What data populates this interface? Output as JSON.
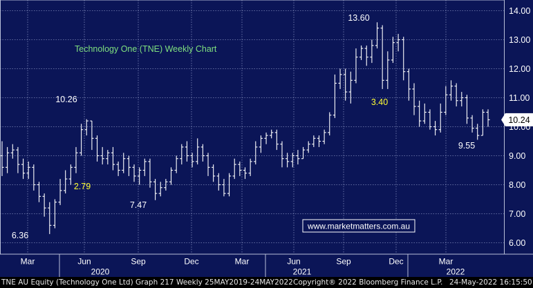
{
  "colors": {
    "background": "#0b1557",
    "plot_border": "#b9c0d9",
    "grid": "#7d86b8",
    "bar": "#ffffff",
    "title": "#7fe07f",
    "yellow_label": "#ffff33",
    "white_label": "#ffffff",
    "axis_text": "#ffffff",
    "current_box_bg": "#ffffff",
    "current_box_text": "#000000",
    "watermark_bg": "#0b1557",
    "watermark_border": "#ffffff"
  },
  "chart_data": {
    "type": "ohlc",
    "title": "Technology One (TNE) Weekly Chart",
    "ylim": [
      5.75,
      14.2
    ],
    "yticks": [
      "6.00",
      "7.00",
      "8.00",
      "9.00",
      "10.00",
      "11.00",
      "12.00",
      "13.00",
      "14.00"
    ],
    "ytick_values": [
      6,
      7,
      8,
      9,
      10,
      11,
      12,
      13,
      14
    ],
    "months": [
      {
        "label": "Mar",
        "index": 40
      },
      {
        "label": "Jun",
        "index": 122
      },
      {
        "label": "Sep",
        "index": 200
      },
      {
        "label": "Dec",
        "index": 277
      },
      {
        "label": "Mar",
        "index": 350
      },
      {
        "label": "Jun",
        "index": 425
      },
      {
        "label": "Sep",
        "index": 497
      },
      {
        "label": "Dec",
        "index": 573
      },
      {
        "label": "Mar",
        "index": 645
      }
    ],
    "years": [
      {
        "label": "2020",
        "index": 145
      },
      {
        "label": "2021",
        "index": 437
      },
      {
        "label": "2022",
        "index": 659
      }
    ],
    "year_dividers": [
      86,
      384,
      590
    ],
    "current_value": "10.24",
    "current_price": 10.24,
    "annotations": [
      {
        "text": "10.26",
        "kind": "white",
        "x_index": 96,
        "y_value": 10.85
      },
      {
        "text": "2.79",
        "kind": "yellow",
        "x_index": 119,
        "y_value": 7.85
      },
      {
        "text": "7.47",
        "kind": "white",
        "x_index": 200,
        "y_value": 7.2
      },
      {
        "text": "6.36",
        "kind": "white",
        "x_index": 29,
        "y_value": 6.15
      },
      {
        "text": "13.60",
        "kind": "white",
        "x_index": 519,
        "y_value": 13.65
      },
      {
        "text": "3.40",
        "kind": "yellow",
        "x_index": 549,
        "y_value": 10.75
      },
      {
        "text": "9.55",
        "kind": "white",
        "x_index": 675,
        "y_value": 9.25
      }
    ],
    "watermark": "www.marketmatters.com.au",
    "bars": [
      [
        9.0,
        8.6,
        9.5,
        8.3
      ],
      [
        8.6,
        9.1,
        9.3,
        8.4
      ],
      [
        9.1,
        9.2,
        9.4,
        8.9
      ],
      [
        9.2,
        8.7,
        9.3,
        8.4
      ],
      [
        8.7,
        8.4,
        8.9,
        8.2
      ],
      [
        8.4,
        8.6,
        8.8,
        8.2
      ],
      [
        8.6,
        8.0,
        8.7,
        7.8
      ],
      [
        8.0,
        7.6,
        8.1,
        7.4
      ],
      [
        7.6,
        7.2,
        7.7,
        6.9
      ],
      [
        7.2,
        6.6,
        7.4,
        6.3
      ],
      [
        6.6,
        7.4,
        7.5,
        6.5
      ],
      [
        7.4,
        7.8,
        8.2,
        7.3
      ],
      [
        7.8,
        8.2,
        8.5,
        7.7
      ],
      [
        8.2,
        8.6,
        8.7,
        8.0
      ],
      [
        8.6,
        9.1,
        9.3,
        8.4
      ],
      [
        9.1,
        9.9,
        10.1,
        9.0
      ],
      [
        9.9,
        10.2,
        10.26,
        9.7
      ],
      [
        10.2,
        9.6,
        10.2,
        9.2
      ],
      [
        9.6,
        9.0,
        9.7,
        8.8
      ],
      [
        9.0,
        8.9,
        9.3,
        8.7
      ],
      [
        8.9,
        9.1,
        9.2,
        8.7
      ],
      [
        9.1,
        8.7,
        9.3,
        8.5
      ],
      [
        8.7,
        8.5,
        8.8,
        8.3
      ],
      [
        8.5,
        8.9,
        9.1,
        8.4
      ],
      [
        8.9,
        8.6,
        9.0,
        8.3
      ],
      [
        8.6,
        8.3,
        8.7,
        8.1
      ],
      [
        8.3,
        8.5,
        8.6,
        8.0
      ],
      [
        8.5,
        8.8,
        8.9,
        8.3
      ],
      [
        8.8,
        8.1,
        8.9,
        7.9
      ],
      [
        8.1,
        7.7,
        8.2,
        7.47
      ],
      [
        7.7,
        7.9,
        8.1,
        7.6
      ],
      [
        7.9,
        8.1,
        8.2,
        7.8
      ],
      [
        8.1,
        8.5,
        8.6,
        8.0
      ],
      [
        8.5,
        8.9,
        9.0,
        8.4
      ],
      [
        8.9,
        9.3,
        9.4,
        8.7
      ],
      [
        9.3,
        9.0,
        9.5,
        8.8
      ],
      [
        9.0,
        8.8,
        9.1,
        8.6
      ],
      [
        8.8,
        9.3,
        9.6,
        8.7
      ],
      [
        9.3,
        9.0,
        9.4,
        8.8
      ],
      [
        9.0,
        8.6,
        9.1,
        8.3
      ],
      [
        8.6,
        8.3,
        8.7,
        8.1
      ],
      [
        8.3,
        8.0,
        8.4,
        7.8
      ],
      [
        8.0,
        7.7,
        8.2,
        7.6
      ],
      [
        7.7,
        8.3,
        8.4,
        7.6
      ],
      [
        8.3,
        8.7,
        8.9,
        8.2
      ],
      [
        8.7,
        8.5,
        8.8,
        8.3
      ],
      [
        8.5,
        8.4,
        8.6,
        8.2
      ],
      [
        8.4,
        8.8,
        8.9,
        8.3
      ],
      [
        8.8,
        9.3,
        9.5,
        8.7
      ],
      [
        9.3,
        9.6,
        9.7,
        9.1
      ],
      [
        9.6,
        9.7,
        9.8,
        9.4
      ],
      [
        9.7,
        9.8,
        9.9,
        9.6
      ],
      [
        9.8,
        9.4,
        9.9,
        9.2
      ],
      [
        9.4,
        8.9,
        9.5,
        8.6
      ],
      [
        8.9,
        8.8,
        9.1,
        8.6
      ],
      [
        8.8,
        9.0,
        9.1,
        8.6
      ],
      [
        9.0,
        8.9,
        9.2,
        8.7
      ],
      [
        8.9,
        9.2,
        9.3,
        8.9
      ],
      [
        9.2,
        9.4,
        9.5,
        9.1
      ],
      [
        9.4,
        9.6,
        9.7,
        9.3
      ],
      [
        9.6,
        9.5,
        9.7,
        9.3
      ],
      [
        9.5,
        9.8,
        9.9,
        9.4
      ],
      [
        9.8,
        10.4,
        10.5,
        9.7
      ],
      [
        10.4,
        11.5,
        11.8,
        10.3
      ],
      [
        11.5,
        11.8,
        12.0,
        11.3
      ],
      [
        11.8,
        11.2,
        12.0,
        10.9
      ],
      [
        11.2,
        11.6,
        11.9,
        10.8
      ],
      [
        11.6,
        12.4,
        12.7,
        11.5
      ],
      [
        12.4,
        12.7,
        12.8,
        12.3
      ],
      [
        12.7,
        12.4,
        12.8,
        12.1
      ],
      [
        12.4,
        12.8,
        13.0,
        12.2
      ],
      [
        12.8,
        13.4,
        13.6,
        12.7
      ],
      [
        13.4,
        11.6,
        13.5,
        11.3
      ],
      [
        11.6,
        12.3,
        12.6,
        11.3
      ],
      [
        12.3,
        12.9,
        13.1,
        12.2
      ],
      [
        12.9,
        13.0,
        13.2,
        12.6
      ],
      [
        13.0,
        11.9,
        13.1,
        11.6
      ],
      [
        11.9,
        11.3,
        12.0,
        10.9
      ],
      [
        11.3,
        10.7,
        11.5,
        10.4
      ],
      [
        10.7,
        10.2,
        10.9,
        10.0
      ],
      [
        10.2,
        10.5,
        10.8,
        10.1
      ],
      [
        10.5,
        10.0,
        10.6,
        9.9
      ],
      [
        10.0,
        9.9,
        10.2,
        9.7
      ],
      [
        9.9,
        10.5,
        10.8,
        9.8
      ],
      [
        10.5,
        11.1,
        11.4,
        10.4
      ],
      [
        11.1,
        11.4,
        11.6,
        10.9
      ],
      [
        11.4,
        10.9,
        11.5,
        10.7
      ],
      [
        10.9,
        11.0,
        11.2,
        10.7
      ],
      [
        11.0,
        10.3,
        11.1,
        10.1
      ],
      [
        10.3,
        9.95,
        10.4,
        9.8
      ],
      [
        9.95,
        9.7,
        10.1,
        9.55
      ],
      [
        9.7,
        10.5,
        10.6,
        9.7
      ],
      [
        10.5,
        10.24,
        10.6,
        10.0
      ]
    ]
  },
  "footer": {
    "left": "TNE AU Equity (Technology One Ltd) Graph 217  Weekly 25MAY2019-24MAY2022",
    "middle": "Copyright® 2022 Bloomberg Finance L.P.",
    "right": "24-May-2022 16:15:50"
  }
}
